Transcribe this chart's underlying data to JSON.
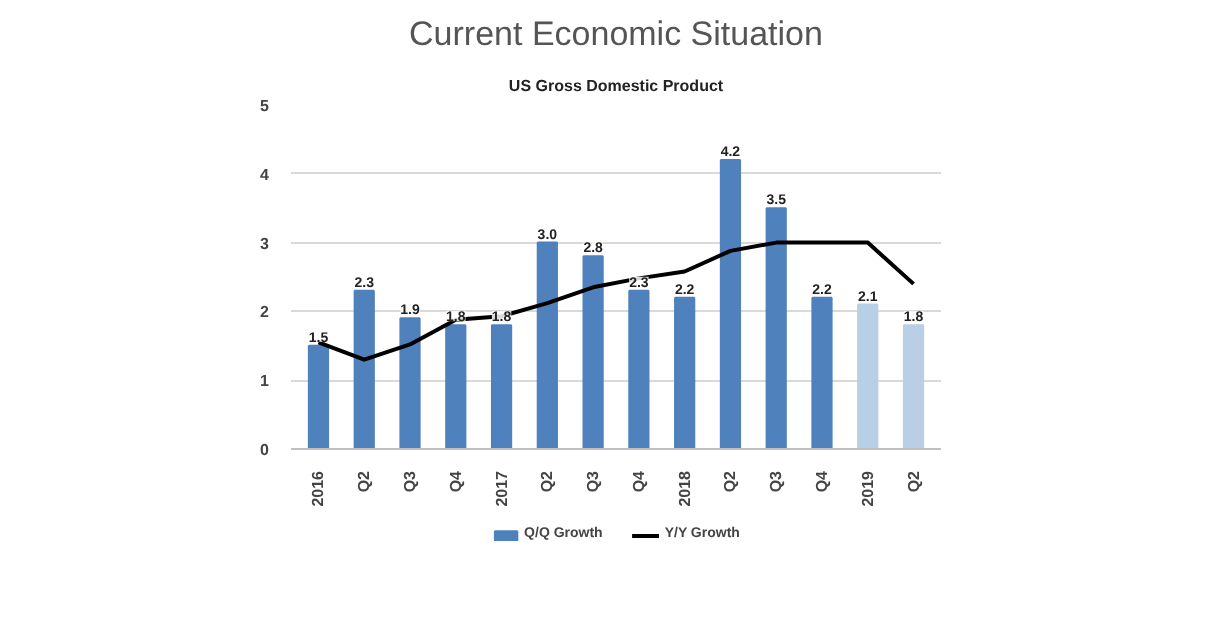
{
  "chart_data": {
    "type": "bar",
    "title": "Current Economic Situation",
    "subtitle": "US Gross Domestic Product",
    "categories": [
      "2016",
      "Q2",
      "Q3",
      "Q4",
      "2017",
      "Q2",
      "Q3",
      "Q4",
      "2018",
      "Q2",
      "Q3",
      "Q4",
      "2019",
      "Q2"
    ],
    "series": [
      {
        "name": "Q/Q Growth",
        "colors": [
          "#4f81bd",
          "#4f81bd",
          "#4f81bd",
          "#4f81bd",
          "#4f81bd",
          "#4f81bd",
          "#4f81bd",
          "#4f81bd",
          "#4f81bd",
          "#4f81bd",
          "#4f81bd",
          "#4f81bd",
          "#b8cfe5",
          "#b8cfe5"
        ],
        "values": [
          1.5,
          2.3,
          1.9,
          1.8,
          1.8,
          3.0,
          2.8,
          2.3,
          2.2,
          4.2,
          3.5,
          2.2,
          2.1,
          1.8
        ],
        "value_labels": [
          "1.5",
          "2.3",
          "1.9",
          "1.8",
          "1.8",
          "3.0",
          "2.8",
          "2.3",
          "2.2",
          "4.2",
          "3.5",
          "2.2",
          "2.1",
          "1.8"
        ]
      },
      {
        "name": "Y/Y Growth",
        "type": "line",
        "color": "#000000",
        "values": [
          1.55,
          1.3,
          1.52,
          1.88,
          1.93,
          2.12,
          2.35,
          2.48,
          2.58,
          2.88,
          3.0,
          3.0,
          3.0,
          2.4
        ]
      }
    ],
    "ylim": [
      0,
      5
    ],
    "yticks": [
      0,
      1,
      2,
      3,
      4,
      5
    ],
    "grid": "y",
    "legend": "bottom"
  }
}
